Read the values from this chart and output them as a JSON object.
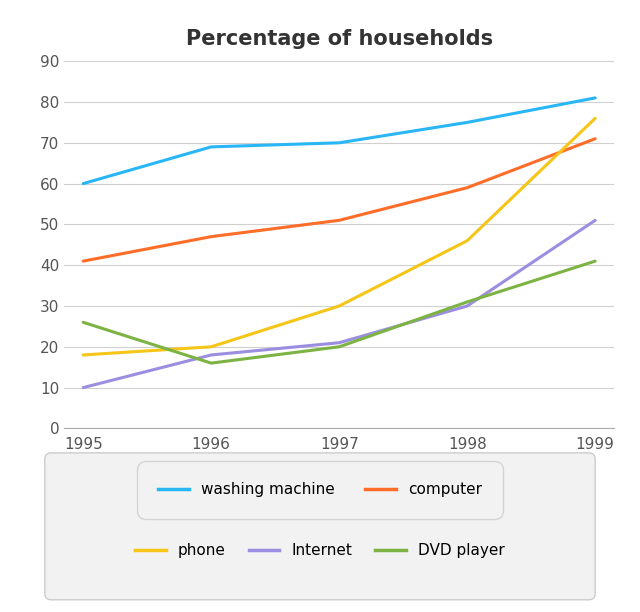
{
  "title": "Percentage of households",
  "years": [
    1995,
    1996,
    1997,
    1998,
    1999
  ],
  "series": [
    {
      "name": "washing machine",
      "values": [
        60,
        69,
        70,
        75,
        81
      ],
      "color": "#29B6F6"
    },
    {
      "name": "computer",
      "values": [
        41,
        47,
        51,
        59,
        71
      ],
      "color": "#FF6D28"
    },
    {
      "name": "phone",
      "values": [
        18,
        20,
        30,
        46,
        76
      ],
      "color": "#F5C518"
    },
    {
      "name": "Internet",
      "values": [
        10,
        18,
        21,
        30,
        51
      ],
      "color": "#9B8EE0"
    },
    {
      "name": "DVD player",
      "values": [
        26,
        16,
        20,
        31,
        41
      ],
      "color": "#7CB342"
    }
  ],
  "ylim": [
    0,
    90
  ],
  "yticks": [
    0,
    10,
    20,
    30,
    40,
    50,
    60,
    70,
    80,
    90
  ],
  "background_color": "#ffffff",
  "grid_color": "#d0d0d0",
  "title_fontsize": 15,
  "tick_fontsize": 11,
  "legend_fontsize": 11,
  "linewidth": 2.2,
  "title_color": "#333333",
  "tick_color": "#555555"
}
